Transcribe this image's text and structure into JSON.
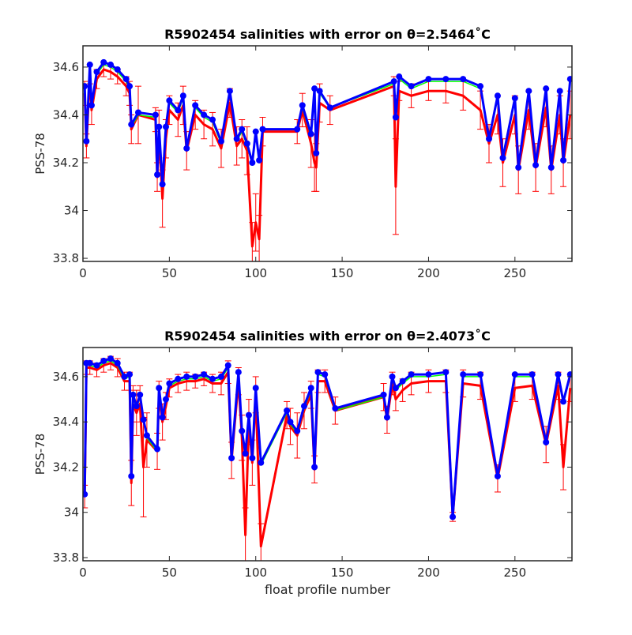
{
  "chart_data": [
    {
      "type": "line",
      "title": "R5902454 salinities with error on θ=2.5464˚C",
      "ylabel": "PSS-78",
      "x": [
        1,
        2,
        4,
        5,
        8,
        12,
        16,
        20,
        25,
        27,
        28,
        32,
        42,
        43,
        44,
        46,
        48,
        50,
        55,
        58,
        60,
        65,
        70,
        75,
        80,
        85,
        89,
        92,
        95,
        98,
        100,
        102,
        104,
        124,
        127,
        132,
        134,
        135,
        137,
        143,
        180,
        181,
        183,
        190,
        200,
        210,
        220,
        230,
        235,
        240,
        243,
        250,
        252,
        258,
        262,
        268,
        271,
        276,
        278,
        282
      ],
      "series": [
        {
          "color": "#ff0000",
          "values": [
            34.49,
            34.27,
            34.57,
            34.42,
            34.55,
            34.59,
            34.58,
            34.56,
            34.52,
            34.49,
            34.34,
            34.4,
            34.38,
            34.14,
            34.32,
            34.05,
            34.3,
            34.42,
            34.38,
            34.44,
            34.25,
            34.4,
            34.36,
            34.34,
            34.26,
            34.45,
            34.27,
            34.3,
            34.25,
            33.85,
            33.95,
            33.88,
            34.33,
            34.33,
            34.42,
            34.28,
            34.2,
            34.18,
            34.45,
            34.42,
            34.52,
            34.1,
            34.5,
            34.48,
            34.5,
            34.5,
            34.48,
            34.42,
            34.28,
            34.4,
            34.2,
            34.4,
            34.17,
            34.42,
            34.18,
            34.43,
            34.17,
            34.4,
            34.2,
            34.4
          ],
          "errors": [
            0.05,
            0.05,
            0.04,
            0.06,
            0.04,
            0.03,
            0.03,
            0.03,
            0.04,
            0.05,
            0.06,
            0.12,
            0.05,
            0.06,
            0.1,
            0.12,
            0.08,
            0.06,
            0.07,
            0.08,
            0.08,
            0.06,
            0.06,
            0.07,
            0.08,
            0.06,
            0.08,
            0.08,
            0.1,
            0.1,
            0.12,
            0.1,
            0.06,
            0.05,
            0.07,
            0.1,
            0.12,
            0.1,
            0.08,
            0.06,
            0.04,
            0.2,
            0.04,
            0.05,
            0.04,
            0.05,
            0.06,
            0.08,
            0.08,
            0.08,
            0.1,
            0.08,
            0.1,
            0.08,
            0.1,
            0.08,
            0.1,
            0.08,
            0.1,
            0.1
          ]
        },
        {
          "color": "#00ff00",
          "values": [
            34.51,
            34.28,
            34.6,
            34.43,
            34.57,
            34.61,
            34.6,
            34.58,
            34.54,
            34.51,
            34.35,
            34.4,
            34.39,
            34.15,
            34.34,
            34.1,
            34.34,
            34.45,
            34.41,
            34.47,
            34.26,
            34.43,
            34.39,
            34.37,
            34.28,
            34.49,
            34.29,
            34.33,
            34.27,
            34.19,
            34.32,
            34.2,
            34.34,
            34.34,
            34.43,
            34.31,
            34.5,
            34.24,
            34.49,
            34.43,
            34.53,
            34.38,
            34.55,
            34.51,
            34.54,
            34.54,
            34.54,
            34.51,
            34.29,
            34.47,
            34.21,
            34.46,
            34.18,
            34.49,
            34.19,
            34.5,
            34.18,
            34.49,
            34.21,
            34.54
          ]
        },
        {
          "color": "#0000ff",
          "markers": true,
          "values": [
            34.52,
            34.29,
            34.61,
            34.44,
            34.58,
            34.62,
            34.61,
            34.59,
            34.55,
            34.52,
            34.36,
            34.41,
            34.4,
            34.15,
            34.35,
            34.11,
            34.35,
            34.46,
            34.42,
            34.48,
            34.26,
            34.44,
            34.4,
            34.38,
            34.29,
            34.5,
            34.3,
            34.34,
            34.28,
            34.2,
            34.33,
            34.21,
            34.34,
            34.34,
            34.44,
            34.32,
            34.51,
            34.24,
            34.5,
            34.43,
            34.54,
            34.39,
            34.56,
            34.52,
            34.55,
            34.55,
            34.55,
            34.52,
            34.3,
            34.48,
            34.22,
            34.47,
            34.18,
            34.5,
            34.19,
            34.51,
            34.18,
            34.5,
            34.21,
            34.55
          ]
        }
      ],
      "xlim": [
        0,
        283
      ],
      "ylim": [
        33.787,
        34.689
      ],
      "xticks": [
        0,
        50,
        100,
        150,
        200,
        250
      ],
      "yticks": [
        33.8,
        34,
        34.2,
        34.4,
        34.6
      ]
    },
    {
      "type": "line",
      "title": "R5902454 salinities with error on θ=2.4073˚C",
      "ylabel": "PSS-78",
      "xlabel": "float profile number",
      "x": [
        1,
        2,
        4,
        8,
        12,
        16,
        20,
        24,
        27,
        28,
        29,
        31,
        33,
        35,
        37,
        43,
        44,
        46,
        48,
        50,
        55,
        60,
        65,
        70,
        75,
        80,
        84,
        86,
        90,
        92,
        94,
        96,
        98,
        100,
        103,
        118,
        120,
        124,
        128,
        132,
        134,
        136,
        140,
        146,
        174,
        176,
        179,
        181,
        185,
        190,
        200,
        210,
        214,
        220,
        230,
        240,
        250,
        260,
        268,
        275,
        278,
        282
      ],
      "series": [
        {
          "color": "#ff0000",
          "values": [
            34.07,
            34.64,
            34.64,
            34.63,
            34.65,
            34.66,
            34.64,
            34.58,
            34.58,
            34.13,
            34.48,
            34.44,
            34.48,
            34.2,
            34.32,
            34.27,
            34.52,
            34.4,
            34.47,
            34.55,
            34.57,
            34.58,
            34.58,
            34.59,
            34.57,
            34.57,
            34.62,
            34.23,
            34.58,
            34.33,
            33.9,
            34.4,
            34.22,
            34.52,
            33.85,
            34.43,
            34.38,
            34.34,
            34.45,
            34.52,
            34.19,
            34.58,
            34.58,
            34.45,
            34.51,
            34.41,
            34.57,
            34.5,
            34.54,
            34.57,
            34.58,
            34.58,
            33.98,
            34.57,
            34.56,
            34.15,
            34.55,
            34.56,
            34.3,
            34.56,
            34.2,
            34.55
          ],
          "errors": [
            0.05,
            0.03,
            0.03,
            0.03,
            0.03,
            0.03,
            0.04,
            0.04,
            0.04,
            0.1,
            0.08,
            0.1,
            0.08,
            0.22,
            0.12,
            0.08,
            0.06,
            0.08,
            0.06,
            0.04,
            0.04,
            0.04,
            0.03,
            0.03,
            0.04,
            0.05,
            0.05,
            0.08,
            0.06,
            0.1,
            0.12,
            0.1,
            0.1,
            0.08,
            0.1,
            0.06,
            0.08,
            0.1,
            0.08,
            0.06,
            0.06,
            0.05,
            0.05,
            0.06,
            0.06,
            0.06,
            0.05,
            0.05,
            0.05,
            0.05,
            0.05,
            0.05,
            0.02,
            0.06,
            0.06,
            0.06,
            0.06,
            0.06,
            0.08,
            0.06,
            0.1,
            0.06
          ]
        },
        {
          "color": "#00ff00",
          "values": [
            34.07,
            34.65,
            34.65,
            34.64,
            34.66,
            34.67,
            34.65,
            34.59,
            34.6,
            34.15,
            34.51,
            34.46,
            34.51,
            34.4,
            34.33,
            34.27,
            34.54,
            34.41,
            34.49,
            34.56,
            34.58,
            34.59,
            34.59,
            34.6,
            34.58,
            34.59,
            34.64,
            34.23,
            34.61,
            34.35,
            34.25,
            34.42,
            34.23,
            34.54,
            34.21,
            34.44,
            34.39,
            34.35,
            34.46,
            34.54,
            34.19,
            34.61,
            34.6,
            34.45,
            34.51,
            34.41,
            34.59,
            34.54,
            34.57,
            34.6,
            34.6,
            34.61,
            33.98,
            34.6,
            34.6,
            34.15,
            34.6,
            34.6,
            34.3,
            34.6,
            34.48,
            34.6
          ]
        },
        {
          "color": "#0000ff",
          "markers": true,
          "values": [
            34.08,
            34.66,
            34.66,
            34.65,
            34.67,
            34.68,
            34.66,
            34.6,
            34.61,
            34.16,
            34.52,
            34.47,
            34.52,
            34.41,
            34.34,
            34.28,
            34.55,
            34.42,
            34.5,
            34.57,
            34.59,
            34.6,
            34.6,
            34.61,
            34.59,
            34.6,
            34.65,
            34.24,
            34.62,
            34.36,
            34.26,
            34.43,
            34.24,
            34.55,
            34.22,
            34.45,
            34.4,
            34.36,
            34.47,
            34.55,
            34.2,
            34.62,
            34.61,
            34.46,
            34.52,
            34.42,
            34.6,
            34.55,
            34.58,
            34.61,
            34.61,
            34.62,
            33.98,
            34.61,
            34.61,
            34.16,
            34.61,
            34.61,
            34.31,
            34.61,
            34.49,
            34.61
          ]
        }
      ],
      "xlim": [
        0,
        283
      ],
      "ylim": [
        33.786,
        34.729
      ],
      "xticks": [
        0,
        50,
        100,
        150,
        200,
        250
      ],
      "yticks": [
        33.8,
        34,
        34.2,
        34.4,
        34.6
      ]
    }
  ]
}
